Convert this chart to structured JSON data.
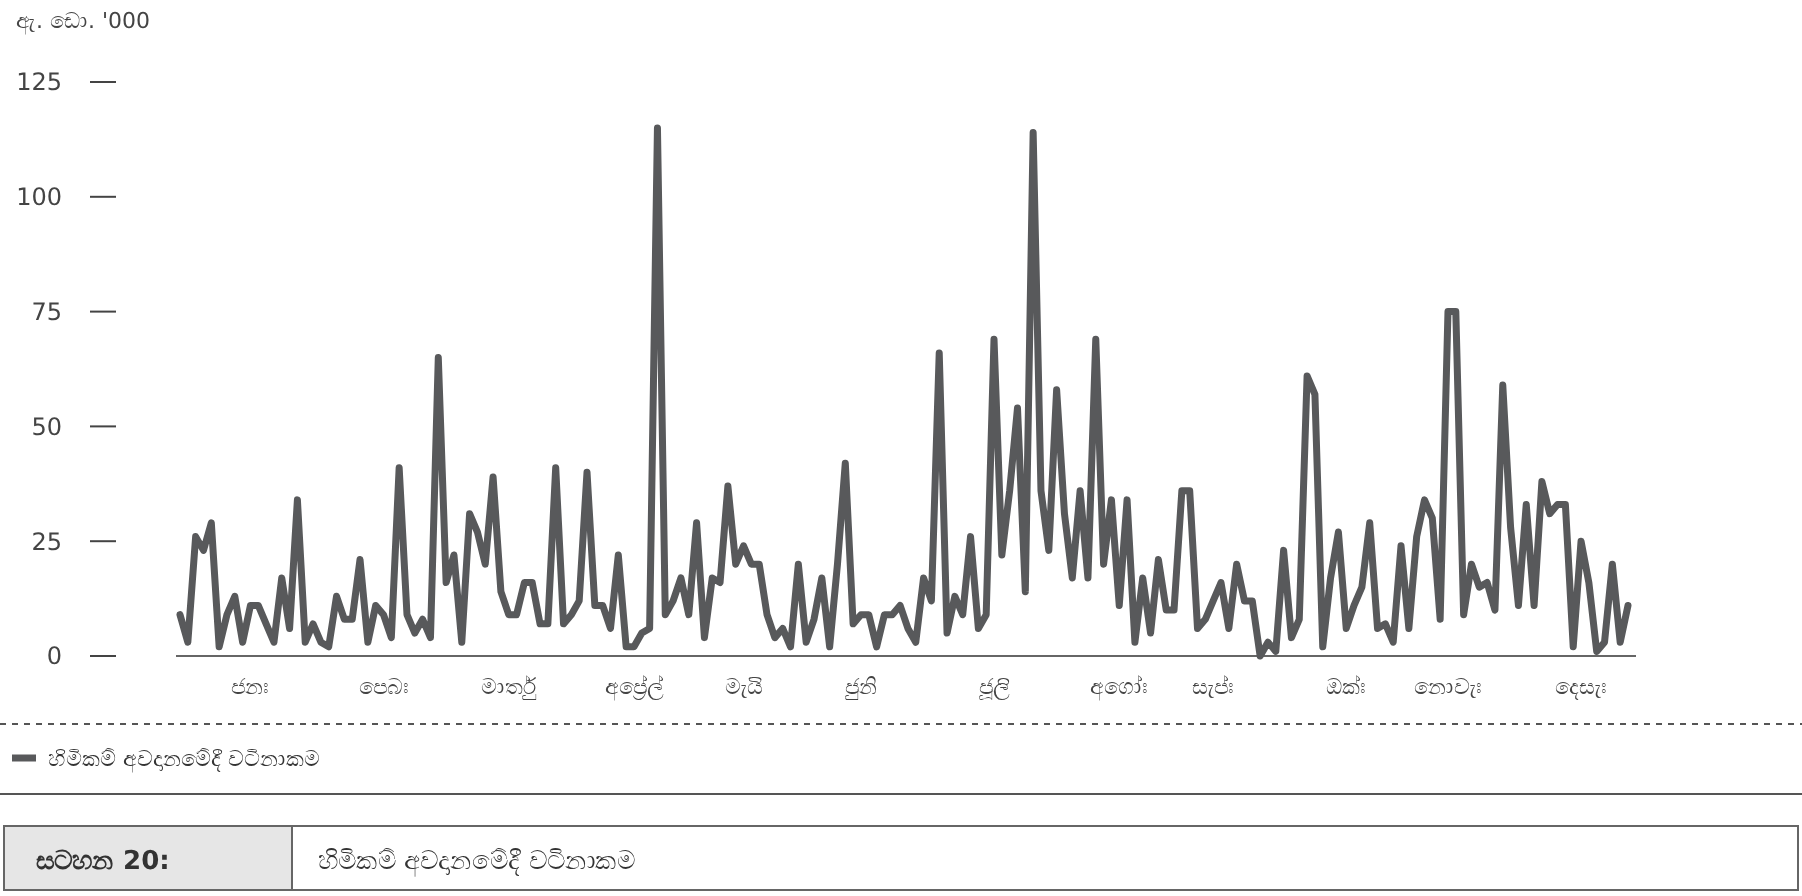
{
  "chart_data": {
    "type": "line",
    "ylabel": "ඇ. ඩො. '000",
    "title": "හිමිකම් අවදානමේදී වටිනාකම",
    "annotations": [
      "සටහන 20:"
    ],
    "categories": [
      null,
      null,
      null,
      null,
      null,
      null,
      null,
      null,
      null,
      "ජනඃ",
      null,
      null,
      null,
      null,
      null,
      null,
      null,
      null,
      null,
      null,
      null,
      null,
      null,
      null,
      null,
      null,
      "පෙබඃ",
      null,
      null,
      null,
      null,
      null,
      null,
      null,
      null,
      null,
      null,
      null,
      null,
      null,
      null,
      null,
      "මාර්තු",
      null,
      null,
      null,
      null,
      null,
      null,
      null,
      null,
      null,
      null,
      null,
      null,
      null,
      null,
      null,
      "අප්‍රේල්",
      null,
      null,
      null,
      null,
      null,
      null,
      null,
      null,
      null,
      null,
      null,
      null,
      null,
      "මැයි",
      null,
      null,
      null,
      null,
      null,
      null,
      null,
      null,
      null,
      null,
      null,
      null,
      null,
      null,
      "ජුනි",
      null,
      null,
      null,
      null,
      null,
      null,
      null,
      null,
      null,
      null,
      null,
      null,
      null,
      null,
      null,
      null,
      "ජූලි",
      null,
      null,
      null,
      null,
      null,
      null,
      null,
      null,
      null,
      null,
      null,
      null,
      null,
      null,
      null,
      "අගෝඃ",
      null,
      null,
      null,
      null,
      null,
      null,
      null,
      null,
      null,
      null,
      null,
      "සැප්ඃ",
      null,
      null,
      null,
      null,
      null,
      null,
      null,
      null,
      null,
      null,
      null,
      null,
      null,
      null,
      null,
      null,
      "ඔක්ඃ",
      null,
      null,
      null,
      null,
      null,
      null,
      null,
      null,
      null,
      null,
      null,
      null,
      "නොවැඃ",
      null,
      null,
      null,
      null,
      null,
      null,
      null,
      null,
      null,
      null,
      null,
      null,
      null,
      null,
      null,
      null,
      "දෙසැඃ",
      null,
      null,
      null,
      null,
      null,
      null
    ],
    "ylim": [
      0,
      125
    ],
    "yticks": [
      0,
      25,
      50,
      75,
      100,
      125
    ],
    "legend": "bottom left",
    "line_style": "solid",
    "series": [
      {
        "name": "හිමිකම් අවදානමේදී වටිනාකම",
        "color": "#58595b",
        "values": [
          9,
          3,
          26,
          23,
          29,
          2,
          9,
          13,
          3,
          11,
          11,
          7,
          3,
          17,
          6,
          34,
          3,
          7,
          3,
          2,
          13,
          8,
          8,
          21,
          3,
          11,
          9,
          4,
          41,
          9,
          5,
          8,
          4,
          65,
          16,
          22,
          3,
          31,
          27,
          20,
          39,
          14,
          9,
          9,
          16,
          16,
          7,
          7,
          41,
          7,
          9,
          12,
          40,
          11,
          11,
          6,
          22,
          2,
          2,
          5,
          6,
          115,
          9,
          12,
          17,
          9,
          29,
          4,
          17,
          16,
          37,
          20,
          24,
          20,
          20,
          9,
          4,
          6,
          2,
          20,
          3,
          8,
          17,
          2,
          20,
          42,
          7,
          9,
          9,
          2,
          9,
          9,
          11,
          6,
          3,
          17,
          12,
          66,
          5,
          13,
          9,
          26,
          6,
          9,
          69,
          22,
          36,
          54,
          14,
          114,
          36,
          23,
          58,
          31,
          17,
          36,
          17,
          69,
          20,
          34,
          11,
          34,
          3,
          17,
          5,
          21,
          10,
          10,
          36,
          36,
          6,
          8,
          12,
          16,
          6,
          20,
          12,
          12,
          0,
          3,
          1,
          23,
          4,
          8,
          61,
          57,
          2,
          17,
          27,
          6,
          11,
          15,
          29,
          6,
          7,
          3,
          24,
          6,
          26,
          34,
          30,
          8,
          75,
          75,
          9,
          20,
          15,
          16,
          10,
          59,
          28,
          11,
          33,
          11,
          38,
          31,
          33,
          33,
          2,
          25,
          16,
          1,
          3,
          20,
          3,
          11
        ]
      }
    ]
  }
}
